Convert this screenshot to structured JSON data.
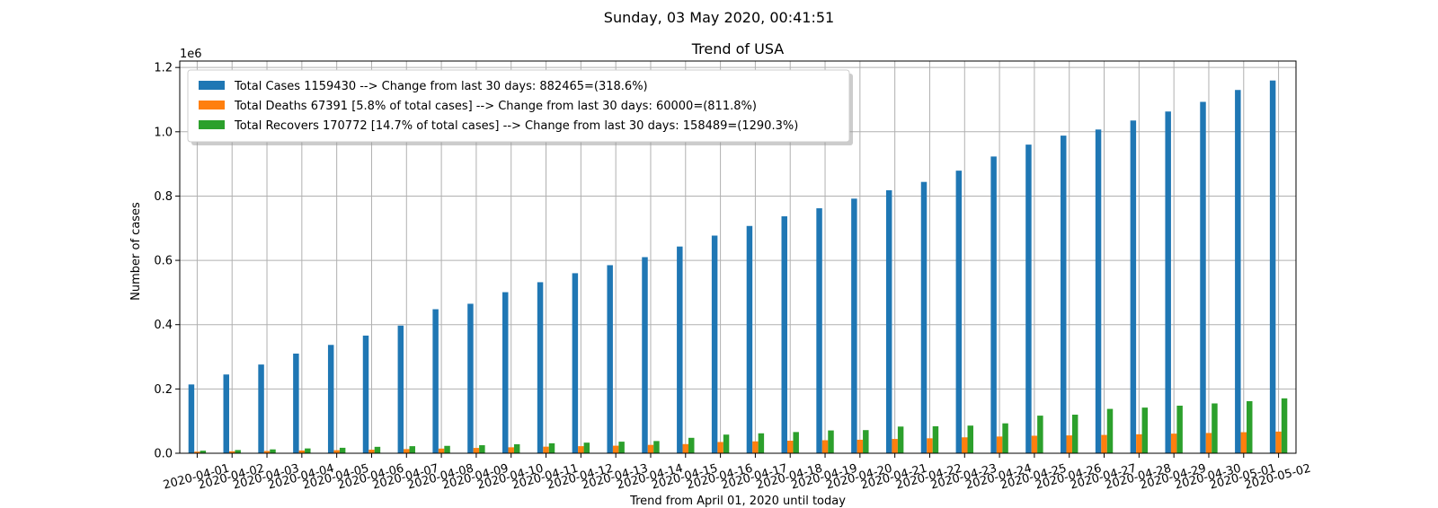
{
  "suptitle": "Sunday, 03 May 2020, 00:41:51",
  "chart_data": {
    "type": "bar",
    "title": "Trend of USA",
    "xlabel": "Trend from April 01, 2020 until today",
    "ylabel": "Number of cases",
    "y_offset_label": "1e6",
    "ylim": [
      0,
      1220000
    ],
    "yticks": [
      0,
      200000,
      400000,
      600000,
      800000,
      1000000,
      1200000
    ],
    "ytick_labels": [
      "0.0",
      "0.2",
      "0.4",
      "0.6",
      "0.8",
      "1.0",
      "1.2"
    ],
    "grid": true,
    "legend_position": "top-left",
    "categories": [
      "2020-04-01",
      "2020-04-02",
      "2020-04-03",
      "2020-04-04",
      "2020-04-05",
      "2020-04-06",
      "2020-04-07",
      "2020-04-08",
      "2020-04-09",
      "2020-04-10",
      "2020-04-11",
      "2020-04-12",
      "2020-04-13",
      "2020-04-14",
      "2020-04-15",
      "2020-04-16",
      "2020-04-17",
      "2020-04-18",
      "2020-04-19",
      "2020-04-20",
      "2020-04-21",
      "2020-04-22",
      "2020-04-23",
      "2020-04-24",
      "2020-04-25",
      "2020-04-26",
      "2020-04-27",
      "2020-04-28",
      "2020-04-29",
      "2020-04-30",
      "2020-05-01",
      "2020-05-02"
    ],
    "series": [
      {
        "name": "Total Cases 1159430 --> Change from last 30 days: 882465=(318.6%)",
        "color": "#1f77b4",
        "values": [
          214000,
          245000,
          276000,
          310000,
          337000,
          366000,
          397000,
          448000,
          465000,
          501000,
          532000,
          560000,
          585000,
          610000,
          643000,
          677000,
          707000,
          737000,
          762000,
          792000,
          818000,
          844000,
          879000,
          923000,
          960000,
          988000,
          1007000,
          1035000,
          1063000,
          1093000,
          1130000,
          1159430
        ]
      },
      {
        "name": "Total Deaths 67391 [5.8% of total cases] --> Change from last 30 days: 60000=(811.8%)",
        "color": "#ff7f0e",
        "values": [
          5000,
          6000,
          7000,
          8500,
          9500,
          11000,
          13000,
          14500,
          16500,
          18500,
          20500,
          22000,
          23500,
          26000,
          28500,
          35000,
          37000,
          39000,
          40500,
          42000,
          44500,
          46500,
          49500,
          52000,
          54500,
          55500,
          57000,
          59000,
          61000,
          63000,
          65500,
          67391
        ]
      },
      {
        "name": "Total Recovers 170772 [14.7% of total cases] --> Change from last 30 days: 158489=(1290.3%)",
        "color": "#2ca02c",
        "values": [
          8000,
          10000,
          12000,
          15000,
          17000,
          20000,
          22000,
          23000,
          25000,
          28000,
          31000,
          33000,
          36000,
          38000,
          48000,
          58000,
          62000,
          66000,
          71000,
          72000,
          83000,
          84000,
          86000,
          93000,
          117000,
          120000,
          138000,
          142000,
          148000,
          155000,
          162000,
          170772
        ]
      }
    ]
  }
}
